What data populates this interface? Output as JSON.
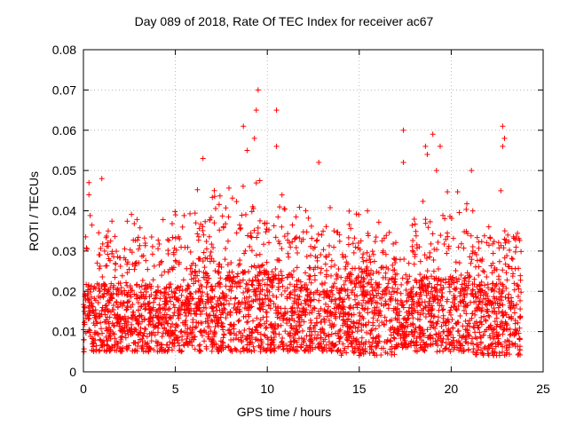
{
  "chart_data": {
    "type": "scatter",
    "title": "Day 089 of 2018, Rate Of TEC Index for receiver ac67",
    "xlabel": "GPS time / hours",
    "ylabel": "ROTI / TECUs",
    "xlim": [
      0,
      25
    ],
    "ylim": [
      0,
      0.08
    ],
    "xticks": [
      0,
      5,
      10,
      15,
      20,
      25
    ],
    "yticks": [
      0,
      0.01,
      0.02,
      0.03,
      0.04,
      0.05,
      0.06,
      0.07,
      0.08
    ],
    "xtick_labels": [
      "0",
      "5",
      "10",
      "15",
      "20",
      "25"
    ],
    "ytick_labels": [
      "0",
      "0.01",
      "0.02",
      "0.03",
      "0.04",
      "0.05",
      "0.06",
      "0.07",
      "0.08"
    ],
    "grid": true,
    "marker": "+",
    "color": "#ff0000",
    "series": [
      {
        "name": "ROTI",
        "notable_points": [
          {
            "x": 0.3,
            "y": 0.047
          },
          {
            "x": 0.3,
            "y": 0.044
          },
          {
            "x": 1.0,
            "y": 0.048
          },
          {
            "x": 6.5,
            "y": 0.053
          },
          {
            "x": 8.7,
            "y": 0.061
          },
          {
            "x": 8.9,
            "y": 0.055
          },
          {
            "x": 9.3,
            "y": 0.058
          },
          {
            "x": 9.4,
            "y": 0.065
          },
          {
            "x": 9.5,
            "y": 0.07
          },
          {
            "x": 10.5,
            "y": 0.065
          },
          {
            "x": 10.5,
            "y": 0.056
          },
          {
            "x": 12.8,
            "y": 0.052
          },
          {
            "x": 17.4,
            "y": 0.06
          },
          {
            "x": 17.4,
            "y": 0.052
          },
          {
            "x": 18.6,
            "y": 0.056
          },
          {
            "x": 18.7,
            "y": 0.054
          },
          {
            "x": 19.0,
            "y": 0.059
          },
          {
            "x": 19.4,
            "y": 0.056
          },
          {
            "x": 19.2,
            "y": 0.05
          },
          {
            "x": 21.1,
            "y": 0.05
          },
          {
            "x": 22.8,
            "y": 0.061
          },
          {
            "x": 22.9,
            "y": 0.058
          },
          {
            "x": 22.8,
            "y": 0.056
          },
          {
            "x": 22.7,
            "y": 0.045
          }
        ],
        "activity_bands": [
          {
            "x_start": 0.0,
            "x_end": 6.0,
            "y_floor": 0.005,
            "y_core_max": 0.022,
            "y_max": 0.04
          },
          {
            "x_start": 6.0,
            "x_end": 11.0,
            "y_floor": 0.005,
            "y_core_max": 0.025,
            "y_max": 0.048
          },
          {
            "x_start": 11.0,
            "x_end": 14.0,
            "y_floor": 0.005,
            "y_core_max": 0.022,
            "y_max": 0.042
          },
          {
            "x_start": 14.0,
            "x_end": 17.0,
            "y_floor": 0.004,
            "y_core_max": 0.026,
            "y_max": 0.04
          },
          {
            "x_start": 17.0,
            "x_end": 17.6,
            "y_floor": 0.006,
            "y_core_max": 0.018,
            "y_max": 0.03
          },
          {
            "x_start": 17.6,
            "x_end": 21.0,
            "y_floor": 0.005,
            "y_core_max": 0.024,
            "y_max": 0.045
          },
          {
            "x_start": 21.0,
            "x_end": 23.8,
            "y_floor": 0.004,
            "y_core_max": 0.022,
            "y_max": 0.04
          }
        ]
      }
    ]
  }
}
